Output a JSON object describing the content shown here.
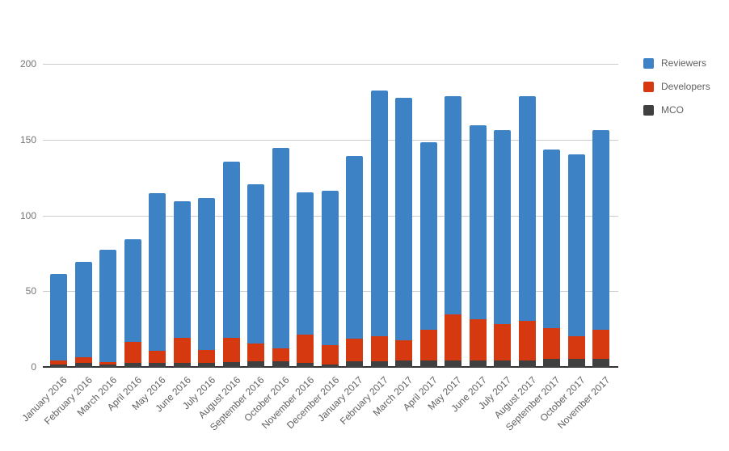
{
  "chart_data": {
    "type": "bar",
    "stacked": true,
    "title": "",
    "xlabel": "",
    "ylabel": "",
    "categories": [
      "January 2016",
      "February 2016",
      "March 2016",
      "April 2016",
      "May 2016",
      "June 2016",
      "July 2016",
      "August 2016",
      "September 2016",
      "October 2016",
      "November 2016",
      "December 2016",
      "January 2017",
      "February 2017",
      "March 2017",
      "April 2017",
      "May 2017",
      "June 2017",
      "July 2017",
      "August 2017",
      "September 2017",
      "October 2017",
      "November 2017"
    ],
    "series": [
      {
        "name": "Reviewers",
        "color": "#3d82c4",
        "values": [
          57,
          63,
          74,
          68,
          104,
          90,
          100,
          116,
          105,
          132,
          94,
          102,
          121,
          162,
          160,
          124,
          144,
          128,
          128,
          148,
          118,
          120,
          132
        ]
      },
      {
        "name": "Developers",
        "color": "#d6390f",
        "values": [
          3,
          4,
          2,
          14,
          8,
          17,
          9,
          16,
          12,
          9,
          19,
          13,
          15,
          17,
          13,
          20,
          30,
          27,
          24,
          26,
          20,
          15,
          19
        ]
      },
      {
        "name": "MCO",
        "color": "#404040",
        "values": [
          2,
          3,
          2,
          3,
          3,
          3,
          3,
          4,
          4,
          4,
          3,
          2,
          4,
          4,
          5,
          5,
          5,
          5,
          5,
          5,
          6,
          6,
          6
        ]
      }
    ],
    "stack_order_bottom_to_top": [
      "MCO",
      "Developers",
      "Reviewers"
    ],
    "ylim": [
      0,
      200
    ],
    "yticks": [
      0,
      50,
      100,
      150,
      200
    ],
    "grid": true,
    "legend_position": "right",
    "legend_entries": [
      "Reviewers",
      "Developers",
      "MCO"
    ]
  },
  "style": {
    "background": "#ffffff",
    "gridline": "#cccccc",
    "axis_line": "#333333",
    "y_tick_label_color": "#757575",
    "x_label_color": "#616161",
    "legend_label_color": "#616161"
  }
}
